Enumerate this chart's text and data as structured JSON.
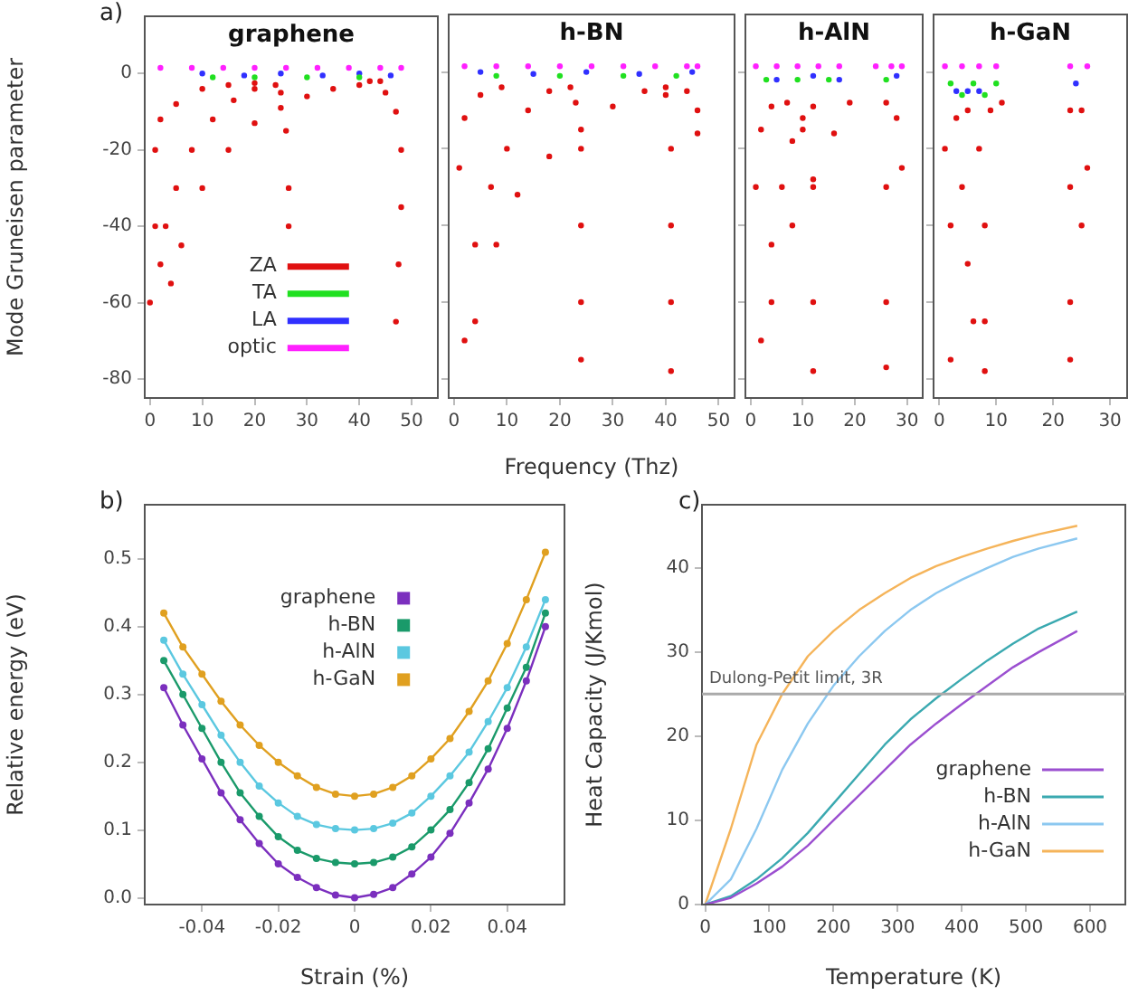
{
  "chart_data": [
    {
      "type": "scatter",
      "title": "graphene",
      "ylabel": "Mode Gruneisen parameter",
      "annotations": [
        "a)"
      ],
      "xlim": [
        -1,
        55
      ],
      "xticks": [
        0,
        10,
        20,
        30,
        40,
        50
      ],
      "ylim": [
        -85,
        15
      ],
      "yticks": [
        -80,
        -60,
        -40,
        -20,
        0
      ],
      "grid": false,
      "legend": "left",
      "marker": "circle",
      "series": [
        {
          "name": "ZA",
          "color": "#e01010",
          "x": [
            0,
            1,
            1,
            2,
            5,
            10,
            15,
            20,
            2,
            3,
            5,
            8,
            12,
            16,
            20,
            24,
            4,
            6,
            10,
            15,
            20,
            25,
            30,
            35,
            40,
            44,
            25,
            26,
            26.5,
            26.5,
            42,
            45,
            47,
            48,
            48,
            47.5,
            47
          ],
          "values": [
            -60,
            -40,
            -20,
            -12,
            -8,
            -4,
            -3,
            -2.5,
            -50,
            -40,
            -30,
            -20,
            -12,
            -7,
            -4,
            -3,
            -55,
            -45,
            -30,
            -20,
            -13,
            -9,
            -6,
            -4,
            -3,
            -2,
            -5,
            -15,
            -30,
            -40,
            -2,
            -5,
            -10,
            -20,
            -35,
            -50,
            -65
          ]
        },
        {
          "name": "TA",
          "color": "#20e020",
          "x": [
            12,
            20,
            30,
            40
          ],
          "values": [
            -1,
            -1,
            -1,
            -1
          ]
        },
        {
          "name": "LA",
          "color": "#3030ff",
          "x": [
            10,
            18,
            25,
            33,
            40,
            46
          ],
          "values": [
            0,
            -0.5,
            0,
            -0.5,
            0,
            -0.5
          ]
        },
        {
          "name": "optic",
          "color": "#ff20ff",
          "x": [
            2,
            8,
            14,
            20,
            26,
            32,
            38,
            44,
            48
          ],
          "values": [
            1.5,
            1.5,
            1.5,
            1.5,
            1.5,
            1.5,
            1.5,
            1.5,
            1.5
          ]
        }
      ]
    },
    {
      "type": "scatter",
      "title": "h-BN",
      "xlabel": "Frequency (Thz)",
      "xlim": [
        -1,
        53
      ],
      "xticks": [
        0,
        10,
        20,
        30,
        40,
        50
      ],
      "ylim": [
        -85,
        15
      ],
      "yticks": [
        -80,
        -60,
        -40,
        -20,
        0
      ],
      "tick_labels": "x",
      "grid": false,
      "marker": "circle",
      "series": [
        {
          "color": "#e01010",
          "x": [
            1,
            2,
            5,
            9,
            2,
            4,
            7,
            10,
            14,
            18,
            22,
            23,
            24,
            24,
            24,
            24,
            4,
            8,
            12,
            18,
            24,
            30,
            36,
            40,
            40,
            41,
            41,
            41,
            41,
            44,
            46,
            46
          ],
          "values": [
            -25,
            -12,
            -6,
            -4,
            -70,
            -45,
            -30,
            -20,
            -10,
            -5,
            -4,
            -8,
            -20,
            -40,
            -60,
            -75,
            -65,
            -45,
            -32,
            -22,
            -15,
            -9,
            -5,
            -4,
            -6,
            -20,
            -40,
            -60,
            -78,
            -5,
            -10,
            -16
          ]
        },
        {
          "color": "#20e020",
          "x": [
            8,
            20,
            32,
            42
          ],
          "values": [
            -1,
            -1,
            -1,
            -1
          ]
        },
        {
          "color": "#3030ff",
          "x": [
            5,
            15,
            25,
            35,
            45
          ],
          "values": [
            0,
            -0.5,
            0,
            -0.5,
            0
          ]
        },
        {
          "color": "#ff20ff",
          "x": [
            2,
            8,
            14,
            20,
            26,
            32,
            38,
            44,
            46
          ],
          "values": [
            1.5,
            1.5,
            1.5,
            1.5,
            1.5,
            1.5,
            1.5,
            1.5,
            1.5
          ]
        }
      ]
    },
    {
      "type": "scatter",
      "title": "h-AlN",
      "xlim": [
        -1,
        33
      ],
      "xticks": [
        0,
        10,
        20,
        30
      ],
      "ylim": [
        -85,
        15
      ],
      "yticks": [
        -80,
        -60,
        -40,
        -20,
        0
      ],
      "tick_labels": "x",
      "grid": false,
      "marker": "circle",
      "series": [
        {
          "color": "#e01010",
          "x": [
            1,
            2,
            4,
            7,
            2,
            4,
            6,
            8,
            10,
            12,
            10,
            12,
            12,
            12,
            4,
            8,
            12,
            16,
            19,
            26,
            26,
            26,
            26,
            28,
            29
          ],
          "values": [
            -30,
            -15,
            -9,
            -8,
            -70,
            -45,
            -30,
            -18,
            -12,
            -9,
            -15,
            -30,
            -60,
            -78,
            -60,
            -40,
            -28,
            -16,
            -8,
            -8,
            -30,
            -60,
            -77,
            -12,
            -25
          ]
        },
        {
          "color": "#20e020",
          "x": [
            3,
            9,
            15,
            26
          ],
          "values": [
            -2,
            -2,
            -2,
            -2
          ]
        },
        {
          "color": "#3030ff",
          "x": [
            5,
            12,
            17,
            28
          ],
          "values": [
            -2,
            -1,
            -2,
            -1
          ]
        },
        {
          "color": "#ff20ff",
          "x": [
            1,
            5,
            9,
            13,
            17,
            24,
            27,
            29
          ],
          "values": [
            1.5,
            1.5,
            1.5,
            1.5,
            1.5,
            1.5,
            1.5,
            1.5
          ]
        }
      ]
    },
    {
      "type": "scatter",
      "title": "h-GaN",
      "xlim": [
        -1,
        33
      ],
      "xticks": [
        0,
        10,
        20,
        30
      ],
      "ylim": [
        -85,
        15
      ],
      "yticks": [
        -80,
        -60,
        -40,
        -20,
        0
      ],
      "tick_labels": "x",
      "grid": false,
      "marker": "circle",
      "series": [
        {
          "color": "#e01010",
          "x": [
            1,
            2,
            2,
            3,
            4,
            5,
            6,
            5,
            7,
            8,
            8,
            8,
            9,
            11,
            23,
            23,
            23,
            23,
            25,
            26,
            25
          ],
          "values": [
            -20,
            -40,
            -75,
            -12,
            -30,
            -50,
            -65,
            -10,
            -20,
            -40,
            -65,
            -78,
            -10,
            -8,
            -10,
            -30,
            -60,
            -75,
            -10,
            -25,
            -40
          ]
        },
        {
          "color": "#20e020",
          "x": [
            2,
            4,
            6,
            8,
            10
          ],
          "values": [
            -3,
            -6,
            -3,
            -6,
            -3
          ]
        },
        {
          "color": "#3030ff",
          "x": [
            3,
            5,
            7,
            24
          ],
          "values": [
            -5,
            -5,
            -5,
            -3
          ]
        },
        {
          "color": "#ff20ff",
          "x": [
            1,
            4,
            7,
            10,
            23,
            26
          ],
          "values": [
            1.5,
            1.5,
            1.5,
            1.5,
            1.5,
            1.5
          ]
        }
      ]
    },
    {
      "type": "line",
      "xlabel": "Strain (%)",
      "ylabel": "Relative energy (eV)",
      "annotations": [
        "b)"
      ],
      "xlim": [
        -0.055,
        0.055
      ],
      "xticks": [
        -0.04,
        -0.02,
        0,
        0.02,
        0.04
      ],
      "ylim": [
        -0.01,
        0.58
      ],
      "yticks": [
        {
          "value": 0,
          "label": "0.0"
        },
        0.1,
        0.2,
        0.3,
        0.4,
        0.5
      ],
      "grid": false,
      "legend": "top",
      "marker": "circle",
      "x": [
        -0.05,
        -0.045,
        -0.04,
        -0.035,
        -0.03,
        -0.025,
        -0.02,
        -0.015,
        -0.01,
        -0.005,
        0,
        0.005,
        0.01,
        0.015,
        0.02,
        0.025,
        0.03,
        0.035,
        0.04,
        0.045,
        0.05
      ],
      "series": [
        {
          "name": "graphene",
          "color": "#7b2fbe",
          "values": [
            0.31,
            0.255,
            0.205,
            0.155,
            0.115,
            0.08,
            0.05,
            0.03,
            0.015,
            0.004,
            0,
            0.005,
            0.015,
            0.035,
            0.06,
            0.095,
            0.14,
            0.19,
            0.25,
            0.32,
            0.4
          ]
        },
        {
          "name": "h-BN",
          "color": "#1a9a6a",
          "values": [
            0.35,
            0.3,
            0.25,
            0.2,
            0.155,
            0.12,
            0.09,
            0.07,
            0.058,
            0.052,
            0.05,
            0.052,
            0.06,
            0.075,
            0.1,
            0.13,
            0.17,
            0.22,
            0.28,
            0.34,
            0.42
          ]
        },
        {
          "name": "h-AlN",
          "color": "#5bc8e0",
          "values": [
            0.38,
            0.33,
            0.285,
            0.24,
            0.2,
            0.165,
            0.14,
            0.12,
            0.108,
            0.102,
            0.1,
            0.102,
            0.11,
            0.125,
            0.15,
            0.18,
            0.215,
            0.26,
            0.31,
            0.37,
            0.44
          ]
        },
        {
          "name": "h-GaN",
          "color": "#e0a020",
          "values": [
            0.42,
            0.37,
            0.33,
            0.29,
            0.255,
            0.225,
            0.2,
            0.18,
            0.163,
            0.153,
            0.15,
            0.153,
            0.163,
            0.18,
            0.205,
            0.235,
            0.275,
            0.32,
            0.375,
            0.44,
            0.51
          ]
        }
      ]
    },
    {
      "type": "line",
      "xlabel": "Temperature (K)",
      "ylabel": "Heat Capacity (J/Kmol)",
      "annotations": [
        "c)"
      ],
      "xlim": [
        -5,
        655
      ],
      "xticks": [
        0,
        100,
        200,
        300,
        400,
        500,
        600
      ],
      "ylim": [
        0,
        47.5
      ],
      "yticks": [
        0,
        10,
        20,
        30,
        40
      ],
      "grid": false,
      "legend": "bottom right",
      "ref_lines": [
        {
          "axis": "y",
          "value": 25,
          "label": "Dulong-Petit limit, 3R",
          "color": "#aaaaaa"
        }
      ],
      "x": [
        0,
        40,
        80,
        120,
        160,
        200,
        240,
        280,
        320,
        360,
        400,
        440,
        480,
        520,
        580
      ],
      "series": [
        {
          "name": "graphene",
          "color": "#9b4fd0",
          "values": [
            0,
            0.8,
            2.5,
            4.5,
            7,
            10,
            13,
            16,
            19,
            21.5,
            23.8,
            26,
            28.2,
            30,
            32.5
          ]
        },
        {
          "name": "h-BN",
          "color": "#3aa9b0",
          "values": [
            0,
            1,
            3,
            5.5,
            8.5,
            12,
            15.5,
            19,
            22,
            24.5,
            26.8,
            29,
            31,
            32.8,
            34.8
          ]
        },
        {
          "name": "h-AlN",
          "color": "#8cc8f0",
          "values": [
            0,
            3,
            9,
            16,
            21.5,
            26,
            29.5,
            32.5,
            35,
            37,
            38.6,
            40,
            41.3,
            42.3,
            43.5
          ]
        },
        {
          "name": "h-GaN",
          "color": "#f5b45a",
          "values": [
            0,
            9,
            19,
            25,
            29.5,
            32.5,
            35,
            37,
            38.8,
            40.2,
            41.3,
            42.3,
            43.2,
            44,
            45
          ]
        }
      ]
    }
  ]
}
